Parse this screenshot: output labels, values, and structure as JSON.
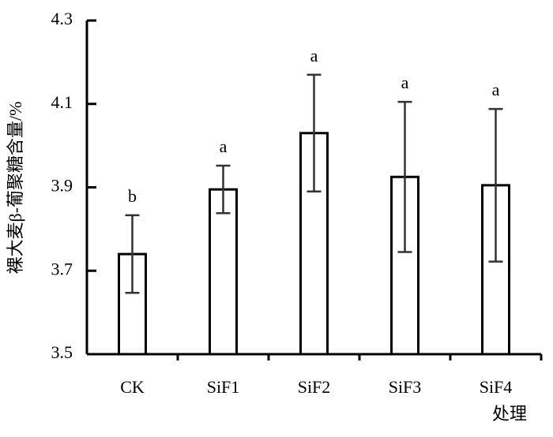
{
  "chart_data": {
    "type": "bar",
    "y_label": "裸大麦β-葡聚糖含量/%",
    "x_label": "处理",
    "categories": [
      "CK",
      "SiF1",
      "SiF2",
      "SiF3",
      "SiF4"
    ],
    "values": [
      3.74,
      3.895,
      4.03,
      3.925,
      3.905
    ],
    "errors": [
      0.093,
      0.057,
      0.14,
      0.18,
      0.183
    ],
    "letters": [
      "b",
      "a",
      "a",
      "a",
      "a"
    ],
    "color": "#ffffff",
    "ylim": [
      3.5,
      4.3
    ],
    "yticks": [
      3.5,
      3.7,
      3.9,
      4.1,
      4.3
    ]
  }
}
